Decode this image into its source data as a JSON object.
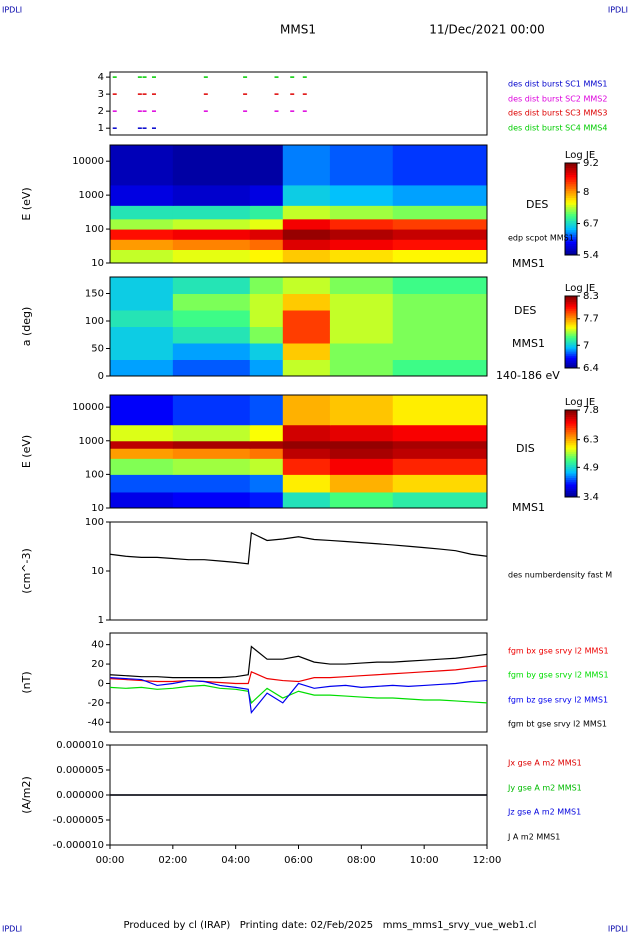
{
  "header": {
    "title": "MMS1",
    "date": "11/Dec/2021 00:00",
    "corner_marks": [
      "IPDLI",
      "IPDLI",
      "IPDLI",
      "IPDLI"
    ]
  },
  "footer": "Produced by cl (IRAP)   Printing date: 02/Feb/2025   mms_mms1_srvy_vue_web1.cl",
  "chart_data": [
    {
      "type": "scatter",
      "xlim": [
        0,
        12
      ],
      "ylim": [
        0.6,
        4.3
      ],
      "yticks": [
        1,
        2,
        3,
        4
      ],
      "series": [
        {
          "name": "des dist burst SC1 MMS1",
          "color": "#0000cc",
          "x": [
            0.15,
            0.95,
            1.1,
            1.4
          ],
          "values": [
            1,
            1,
            1,
            1
          ]
        },
        {
          "name": "des dist burst SC2 MMS2",
          "color": "#dd00dd",
          "x": [
            0.15,
            0.95,
            1.1,
            1.4,
            3.05,
            4.3,
            5.3,
            5.8,
            6.2
          ],
          "values": [
            2,
            2,
            2,
            2,
            2,
            2,
            2,
            2,
            2
          ]
        },
        {
          "name": "des dist burst SC3 MMS3",
          "color": "#dd0000",
          "x": [
            0.15,
            0.95,
            1.1,
            1.4,
            3.05,
            4.3,
            5.3,
            5.8,
            6.2
          ],
          "values": [
            3,
            3,
            3,
            3,
            3,
            3,
            3,
            3,
            3
          ]
        },
        {
          "name": "des dist burst SC4 MMS4",
          "color": "#00cc00",
          "x": [
            0.15,
            0.95,
            1.1,
            1.4,
            3.05,
            4.3,
            5.3,
            5.8,
            6.2
          ],
          "values": [
            4,
            4,
            4,
            4,
            4,
            4,
            4,
            4,
            4
          ]
        }
      ]
    },
    {
      "type": "heatmap",
      "ylabel": "E (eV)",
      "log": true,
      "xlim": [
        0,
        12
      ],
      "ylim": [
        10,
        30000
      ],
      "yticks": [
        10,
        100,
        1000,
        10000
      ],
      "xbins": [
        0,
        2,
        4.45,
        5.5,
        7,
        9,
        12
      ],
      "ybins": [
        10,
        25,
        50,
        100,
        200,
        500,
        2000,
        30000
      ],
      "z": [
        [
          7.4,
          7.5,
          7.6,
          7.8,
          7.7,
          7.6
        ],
        [
          8.0,
          8.1,
          8.2,
          8.8,
          8.7,
          8.6
        ],
        [
          8.6,
          8.7,
          8.8,
          9.1,
          9.0,
          8.9
        ],
        [
          7.3,
          7.4,
          7.5,
          8.7,
          8.5,
          8.4
        ],
        [
          6.8,
          6.8,
          6.9,
          7.4,
          7.3,
          7.2
        ],
        [
          5.8,
          5.7,
          5.8,
          6.6,
          6.5,
          6.4
        ],
        [
          5.6,
          5.5,
          5.5,
          6.3,
          6.2,
          6.1
        ]
      ],
      "colorbar_label": "Log JE",
      "clim": [
        5.4,
        9.2
      ],
      "cticks": [
        5.4,
        6.7,
        8.0,
        9.2
      ],
      "colormap": [
        "#00008f",
        "#0000ff",
        "#00bfff",
        "#40ff80",
        "#ffff00",
        "#ff8000",
        "#ff0000",
        "#800000"
      ],
      "annotations": [
        "DES",
        "edp scpot MMS1",
        "MMS1"
      ]
    },
    {
      "type": "heatmap",
      "ylabel": "a (deg)",
      "log": false,
      "xlim": [
        0,
        12
      ],
      "ylim": [
        0,
        180
      ],
      "yticks": [
        0,
        50,
        100,
        150
      ],
      "xbins": [
        0,
        2,
        4.45,
        5.5,
        7,
        9,
        12
      ],
      "ybins": [
        0,
        30,
        60,
        90,
        120,
        150,
        180
      ],
      "z": [
        [
          6.9,
          6.8,
          6.9,
          7.4,
          7.3,
          7.2
        ],
        [
          7.0,
          6.9,
          7.0,
          7.6,
          7.3,
          7.3
        ],
        [
          7.0,
          7.1,
          7.3,
          7.9,
          7.4,
          7.3
        ],
        [
          7.1,
          7.2,
          7.4,
          7.9,
          7.4,
          7.3
        ],
        [
          7.0,
          7.3,
          7.4,
          7.6,
          7.4,
          7.3
        ],
        [
          7.0,
          7.1,
          7.3,
          7.4,
          7.3,
          7.2
        ]
      ],
      "colorbar_label": "Log JE",
      "clim": [
        6.4,
        8.3
      ],
      "cticks": [
        6.4,
        7.0,
        7.7,
        8.3
      ],
      "colormap": [
        "#00008f",
        "#0000ff",
        "#00bfff",
        "#40ff80",
        "#ffff00",
        "#ff8000",
        "#ff0000",
        "#800000"
      ],
      "annotations": [
        "DES",
        "MMS1",
        "140-186 eV"
      ]
    },
    {
      "type": "heatmap",
      "ylabel": "E (eV)",
      "log": true,
      "xlim": [
        0,
        12
      ],
      "ylim": [
        10,
        23000
      ],
      "yticks": [
        10,
        100,
        1000,
        10000
      ],
      "xbins": [
        0,
        2,
        4.45,
        5.5,
        7,
        9,
        12
      ],
      "ybins": [
        10,
        30,
        100,
        300,
        600,
        1000,
        3000,
        23000
      ],
      "z": [
        [
          3.9,
          4.0,
          4.1,
          5.0,
          5.3,
          5.1
        ],
        [
          4.3,
          4.3,
          4.4,
          6.0,
          6.3,
          6.1
        ],
        [
          5.5,
          5.6,
          5.7,
          7.0,
          7.2,
          7.0
        ],
        [
          6.4,
          6.5,
          6.6,
          7.5,
          7.6,
          7.5
        ],
        [
          7.5,
          7.6,
          7.6,
          7.7,
          7.7,
          7.6
        ],
        [
          5.8,
          5.7,
          5.9,
          7.4,
          7.3,
          7.2
        ],
        [
          4.0,
          4.2,
          4.3,
          6.3,
          6.2,
          6.0
        ]
      ],
      "colorbar_label": "Log JE",
      "clim": [
        3.4,
        7.8
      ],
      "cticks": [
        3.4,
        4.9,
        6.3,
        7.8
      ],
      "colormap": [
        "#00008f",
        "#0000ff",
        "#00bfff",
        "#40ff80",
        "#ffff00",
        "#ff8000",
        "#ff0000",
        "#800000"
      ],
      "annotations": [
        "DIS",
        "MMS1"
      ]
    },
    {
      "type": "line",
      "ylabel": "(cm^-3)",
      "log": true,
      "xlim": [
        0,
        12
      ],
      "ylim": [
        1,
        100
      ],
      "yticks": [
        1,
        10,
        100
      ],
      "x": [
        0,
        0.5,
        1,
        1.5,
        2,
        2.5,
        3,
        3.5,
        4,
        4.4,
        4.5,
        5,
        5.5,
        6,
        6.5,
        7,
        7.5,
        8,
        8.5,
        9,
        9.5,
        10,
        10.5,
        11,
        11.5,
        12
      ],
      "series": [
        {
          "name": "des numberdensity fast M",
          "color": "#000000",
          "values": [
            22,
            20,
            19,
            19,
            18,
            17,
            17,
            16,
            15,
            14,
            60,
            42,
            45,
            50,
            44,
            42,
            40,
            38,
            36,
            34,
            32,
            30,
            28,
            26,
            22,
            20
          ]
        }
      ]
    },
    {
      "type": "line",
      "ylabel": "(nT)",
      "log": false,
      "xlim": [
        0,
        12
      ],
      "ylim": [
        -50,
        52
      ],
      "yticks": [
        -40,
        -20,
        0,
        20,
        40
      ],
      "x": [
        0,
        0.5,
        1,
        1.5,
        2,
        2.5,
        3,
        3.5,
        4,
        4.4,
        4.5,
        5,
        5.5,
        6,
        6.5,
        7,
        7.5,
        8,
        8.5,
        9,
        9.5,
        10,
        10.5,
        11,
        11.5,
        12
      ],
      "series": [
        {
          "name": "fgm bx gse srvy l2 MMS1",
          "color": "#ee0000",
          "values": [
            5,
            4,
            3,
            2,
            2,
            3,
            2,
            1,
            0,
            0,
            12,
            5,
            3,
            2,
            6,
            6,
            7,
            8,
            9,
            10,
            11,
            12,
            13,
            14,
            16,
            18
          ]
        },
        {
          "name": "fgm by gse srvy l2 MMS1",
          "color": "#00dd00",
          "values": [
            -4,
            -5,
            -4,
            -6,
            -5,
            -3,
            -2,
            -5,
            -6,
            -8,
            -20,
            -5,
            -15,
            -8,
            -12,
            -12,
            -13,
            -14,
            -15,
            -15,
            -16,
            -17,
            -17,
            -18,
            -19,
            -20
          ]
        },
        {
          "name": "fgm bz gse srvy l2 MMS1",
          "color": "#0000ee",
          "values": [
            6,
            5,
            4,
            -2,
            0,
            3,
            2,
            -2,
            -4,
            -6,
            -30,
            -10,
            -20,
            0,
            -5,
            -3,
            -2,
            -4,
            -3,
            -2,
            -3,
            -2,
            -1,
            0,
            2,
            3
          ]
        },
        {
          "name": "fgm bt gse srvy l2 MMS1",
          "color": "#000000",
          "values": [
            9,
            8,
            7,
            7,
            6,
            6,
            6,
            6,
            7,
            9,
            38,
            25,
            25,
            28,
            22,
            20,
            20,
            21,
            22,
            22,
            23,
            24,
            25,
            26,
            28,
            30
          ]
        }
      ]
    },
    {
      "type": "line",
      "ylabel": "(A/m2)",
      "log": false,
      "xlim": [
        0,
        12
      ],
      "ylim": [
        -1e-05,
        1e-05
      ],
      "yticks": [
        {
          "value": -1e-05,
          "label": "-0.000010"
        },
        {
          "value": -5e-06,
          "label": "-0.000005"
        },
        {
          "value": 0,
          "label": "0.000000"
        },
        {
          "value": 5e-06,
          "label": "0.000005"
        },
        {
          "value": 1e-05,
          "label": "0.000010"
        }
      ],
      "x": [
        0,
        6,
        12
      ],
      "xticks": [
        {
          "value": 0,
          "label": "00:00"
        },
        {
          "value": 2,
          "label": "02:00"
        },
        {
          "value": 4,
          "label": "04:00"
        },
        {
          "value": 6,
          "label": "06:00"
        },
        {
          "value": 8,
          "label": "08:00"
        },
        {
          "value": 10,
          "label": "10:00"
        },
        {
          "value": 12,
          "label": "12:00"
        }
      ],
      "series": [
        {
          "name": "Jx gse A m2 MMS1",
          "color": "#dd0000",
          "values": [
            0,
            0,
            0
          ]
        },
        {
          "name": "Jy gse A m2 MMS1",
          "color": "#00bb00",
          "values": [
            0,
            0,
            0
          ]
        },
        {
          "name": "Jz gse A m2 MMS1",
          "color": "#0000dd",
          "values": [
            0,
            0,
            0
          ]
        },
        {
          "name": "J A m2 MMS1",
          "color": "#000000",
          "values": [
            0,
            0,
            0
          ]
        }
      ]
    }
  ]
}
